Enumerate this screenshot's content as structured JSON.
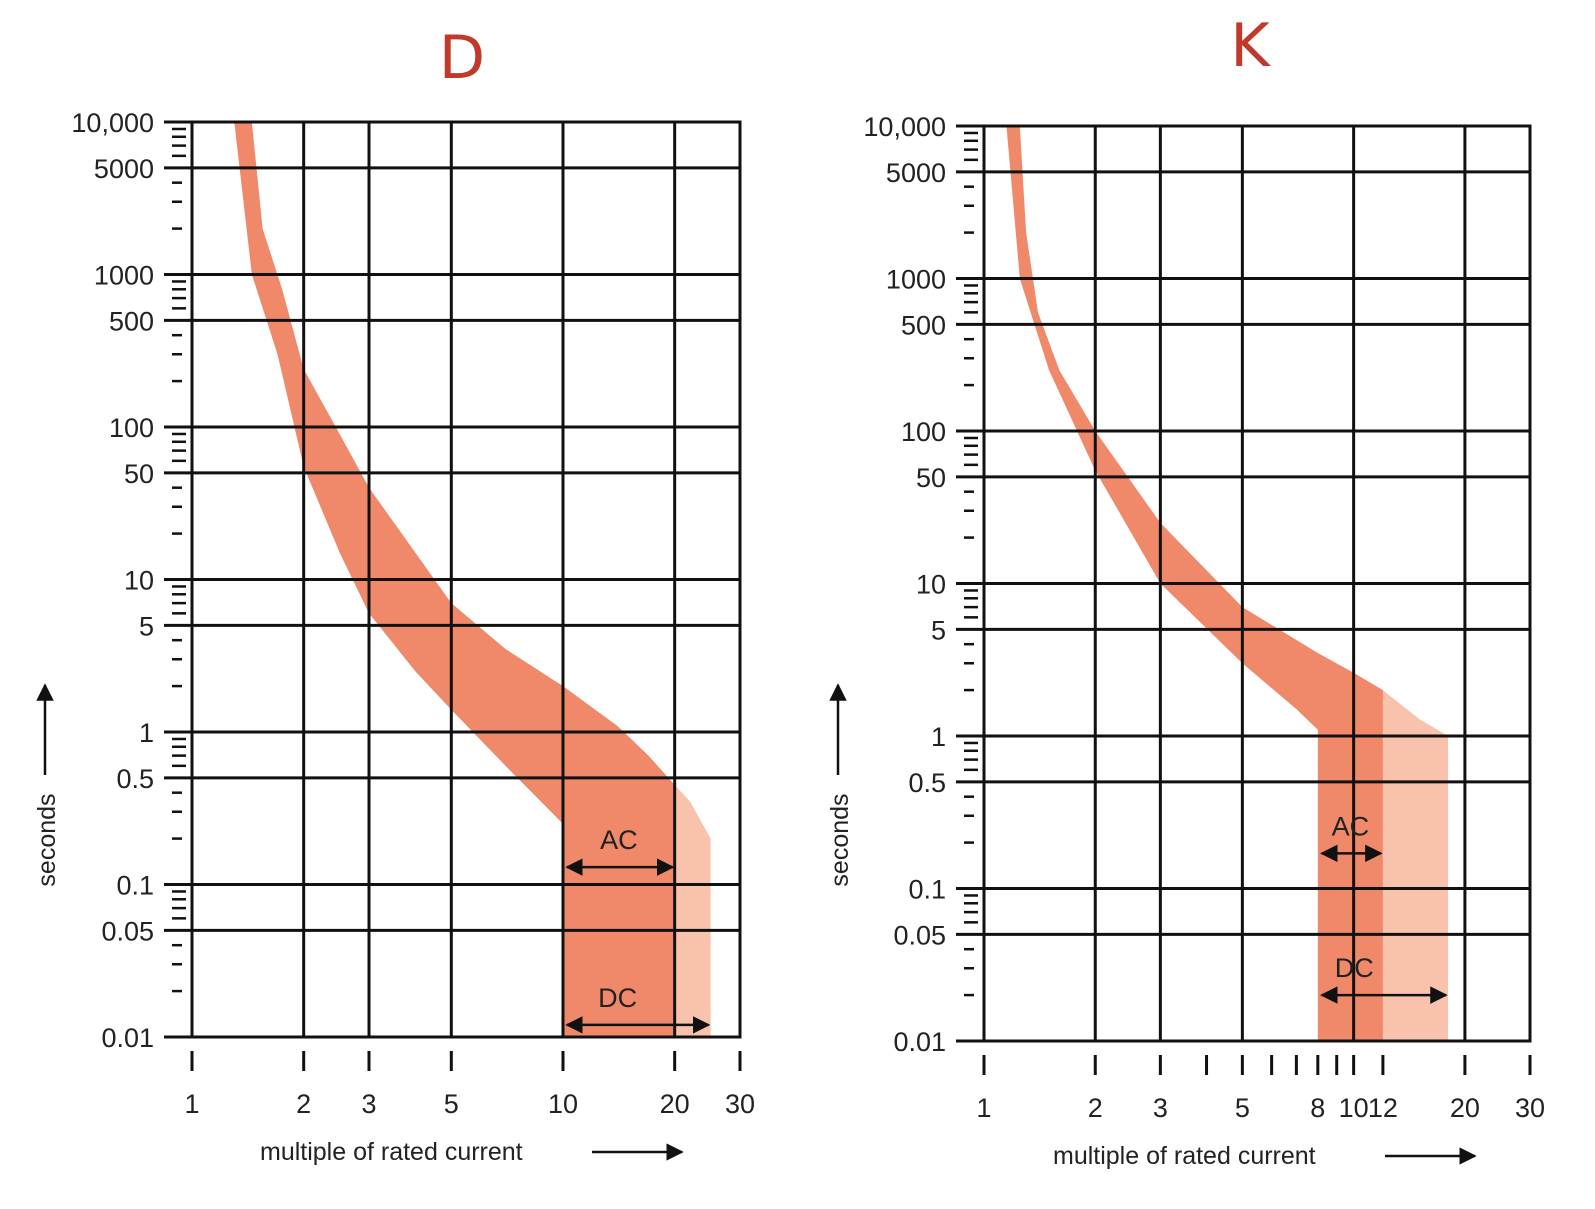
{
  "colors": {
    "band": "#f0896a",
    "band_light": "#f9c2ac",
    "title": "#c0392b",
    "grid": "#111111",
    "text": "#222222"
  },
  "chart_data": [
    {
      "type": "area",
      "title": "D",
      "xlabel": "multiple of rated current",
      "ylabel": "seconds",
      "x_scale": "log",
      "y_scale": "log",
      "xlim": [
        1,
        30
      ],
      "ylim": [
        0.01,
        10000
      ],
      "x_ticks": [
        1,
        2,
        3,
        5,
        10,
        20,
        30
      ],
      "x_tick_labels": [
        "1",
        "2",
        "3",
        "5",
        "10",
        "20",
        "30"
      ],
      "x_gridlines": [
        2,
        3,
        5,
        10,
        20
      ],
      "y_ticks": [
        10000,
        5000,
        1000,
        500,
        100,
        50,
        10,
        5,
        1,
        0.5,
        0.1,
        0.05,
        0.01
      ],
      "y_tick_labels": [
        "10,000",
        "5000",
        "1000",
        "500",
        "100",
        "50",
        "10",
        "5",
        "1",
        "0.5",
        "0.1",
        "0.05",
        "0.01"
      ],
      "grid": true,
      "series": [
        {
          "name": "AC",
          "lower_boundary": [
            [
              1.3,
              10000
            ],
            [
              1.45,
              1000
            ],
            [
              1.7,
              300
            ],
            [
              2,
              55
            ],
            [
              2.5,
              15
            ],
            [
              3,
              6
            ],
            [
              4,
              2.5
            ],
            [
              5,
              1.4
            ],
            [
              7,
              0.6
            ],
            [
              10,
              0.25
            ],
            [
              10,
              0.01
            ]
          ],
          "upper_boundary": [
            [
              1.45,
              10000
            ],
            [
              1.55,
              2000
            ],
            [
              1.75,
              800
            ],
            [
              2,
              240
            ],
            [
              2.5,
              90
            ],
            [
              3,
              40
            ],
            [
              4,
              15
            ],
            [
              5,
              7
            ],
            [
              7,
              3.5
            ],
            [
              10,
              2
            ],
            [
              14,
              1.1
            ],
            [
              17,
              0.7
            ],
            [
              20,
              0.45
            ],
            [
              20,
              0.01
            ]
          ]
        },
        {
          "name": "DC",
          "extension_boundary": [
            [
              20,
              0.45
            ],
            [
              22,
              0.35
            ],
            [
              25,
              0.2
            ],
            [
              25,
              0.01
            ]
          ]
        }
      ],
      "annotations": [
        {
          "text": "AC",
          "x_from": 10,
          "x_to": 20,
          "y": 0.13
        },
        {
          "text": "DC",
          "x_from": 10,
          "x_to": 25,
          "y": 0.012
        }
      ]
    },
    {
      "type": "area",
      "title": "K",
      "xlabel": "multiple of rated current",
      "ylabel": "seconds",
      "x_scale": "log",
      "y_scale": "log",
      "xlim": [
        1,
        30
      ],
      "ylim": [
        0.01,
        10000
      ],
      "x_ticks": [
        1,
        2,
        3,
        5,
        8,
        10,
        12,
        20,
        30
      ],
      "x_tick_labels": [
        "1",
        "2",
        "3",
        "5",
        "8",
        "10",
        "12",
        "20",
        "30"
      ],
      "x_minor_ticks": [
        4,
        6,
        7,
        9
      ],
      "x_gridlines": [
        2,
        3,
        5,
        10,
        20
      ],
      "y_ticks": [
        10000,
        5000,
        1000,
        500,
        100,
        50,
        10,
        5,
        1,
        0.5,
        0.1,
        0.05,
        0.01
      ],
      "y_tick_labels": [
        "10,000",
        "5000",
        "1000",
        "500",
        "100",
        "50",
        "10",
        "5",
        "1",
        "0.5",
        "0.1",
        "0.05",
        "0.01"
      ],
      "grid": true,
      "series": [
        {
          "name": "AC",
          "lower_boundary": [
            [
              1.15,
              10000
            ],
            [
              1.25,
              1000
            ],
            [
              1.5,
              250
            ],
            [
              2,
              55
            ],
            [
              3,
              10
            ],
            [
              5,
              3
            ],
            [
              7,
              1.5
            ],
            [
              8,
              1.1
            ],
            [
              8,
              0.01
            ]
          ],
          "upper_boundary": [
            [
              1.25,
              10000
            ],
            [
              1.3,
              2000
            ],
            [
              1.4,
              600
            ],
            [
              1.6,
              250
            ],
            [
              2,
              100
            ],
            [
              3,
              25
            ],
            [
              5,
              7
            ],
            [
              8,
              3.5
            ],
            [
              10,
              2.6
            ],
            [
              12,
              2
            ],
            [
              12,
              0.01
            ]
          ]
        },
        {
          "name": "DC",
          "extension_boundary": [
            [
              12,
              2
            ],
            [
              15,
              1.3
            ],
            [
              18,
              1
            ],
            [
              18,
              0.01
            ]
          ]
        }
      ],
      "annotations": [
        {
          "text": "AC",
          "x_from": 8,
          "x_to": 12,
          "y": 0.17
        },
        {
          "text": "DC",
          "x_from": 8,
          "x_to": 18,
          "y": 0.02
        }
      ]
    }
  ]
}
